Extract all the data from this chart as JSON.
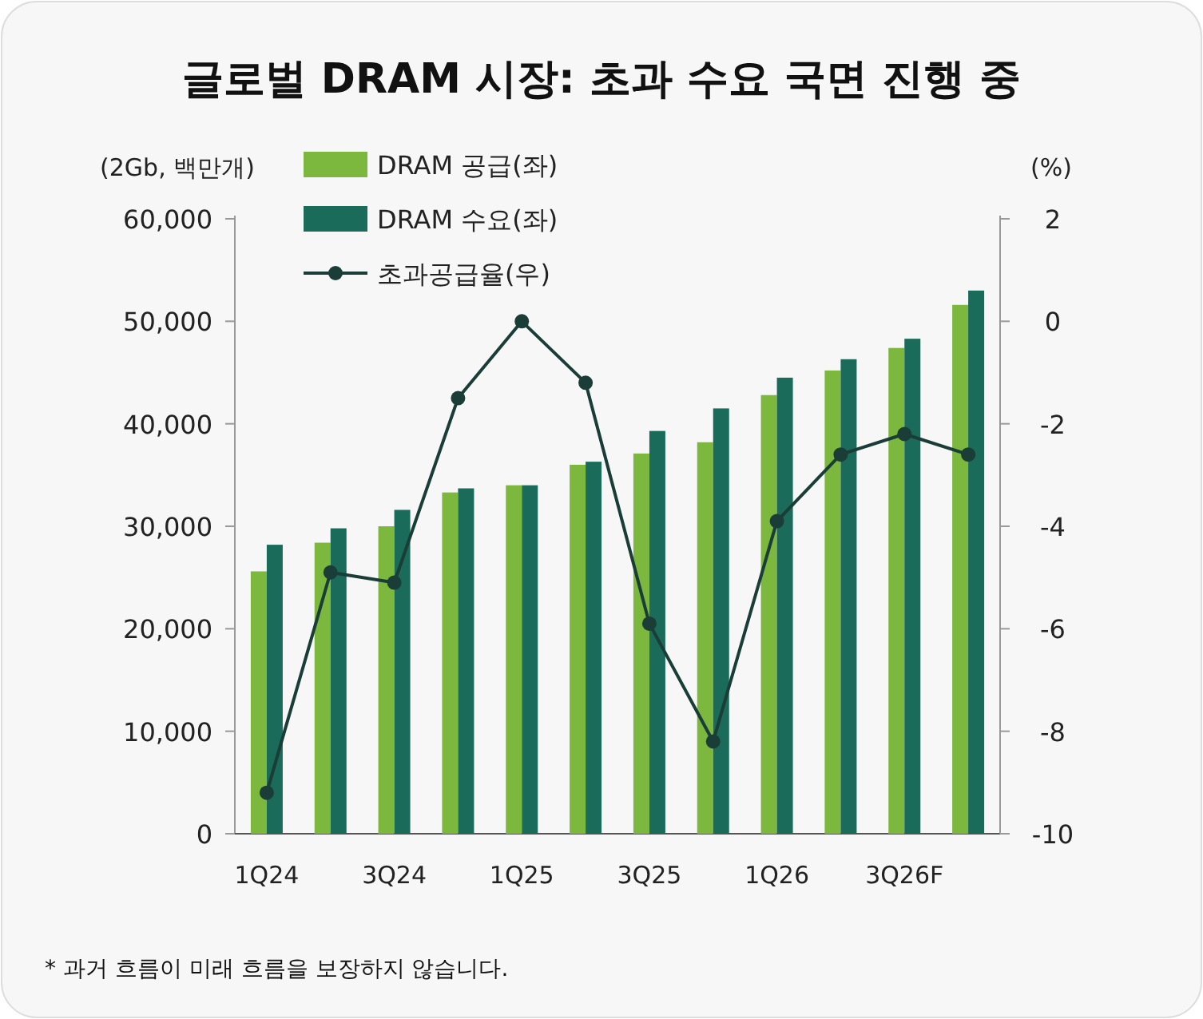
{
  "chart_data": {
    "type": "bar",
    "title": "글로벌 DRAM 시장: 초과 수요 국면 진행 중",
    "categories": [
      "1Q24",
      null,
      "3Q24",
      null,
      "1Q25",
      null,
      "3Q25",
      null,
      "1Q26",
      null,
      "3Q26F",
      null
    ],
    "series": [
      {
        "name": "DRAM 공급(좌)",
        "color": "#7cb83e",
        "values": [
          25600,
          28400,
          30000,
          33300,
          34000,
          36000,
          37100,
          38200,
          42800,
          45200,
          47400,
          51600
        ]
      },
      {
        "name": "DRAM 수요(좌)",
        "color": "#1b6b5a",
        "values": [
          28200,
          29800,
          31600,
          33700,
          34000,
          36300,
          39300,
          41500,
          44500,
          46300,
          48300,
          53000
        ]
      },
      {
        "name": "초과공급율(우)",
        "type": "line",
        "axis": "y2",
        "color": "#1a3d38",
        "values": [
          -9.2,
          -4.9,
          -5.1,
          -1.5,
          0,
          -1.2,
          -5.9,
          -8.2,
          -3.9,
          -2.6,
          -2.2,
          -2.6
        ]
      }
    ],
    "ylabel": "(2Gb, 백만개)",
    "y2label": "(%)",
    "ylim": [
      0,
      60000
    ],
    "yticks": [
      {
        "value": 0,
        "label": "0"
      },
      {
        "value": 10000,
        "label": "10,000"
      },
      {
        "value": 20000,
        "label": "20,000"
      },
      {
        "value": 30000,
        "label": "30,000"
      },
      {
        "value": 40000,
        "label": "40,000"
      },
      {
        "value": 50000,
        "label": "50,000"
      },
      {
        "value": 60000,
        "label": "60,000"
      }
    ],
    "y2lim": [
      -10,
      2
    ],
    "y2ticks": [
      -10,
      -8,
      -6,
      -4,
      -2,
      0,
      2
    ],
    "legend": "top left",
    "marker": "circle",
    "grid": false,
    "annotations": [
      "* 과거 흐름이 미래 흐름을 보장하지 않습니다."
    ]
  }
}
